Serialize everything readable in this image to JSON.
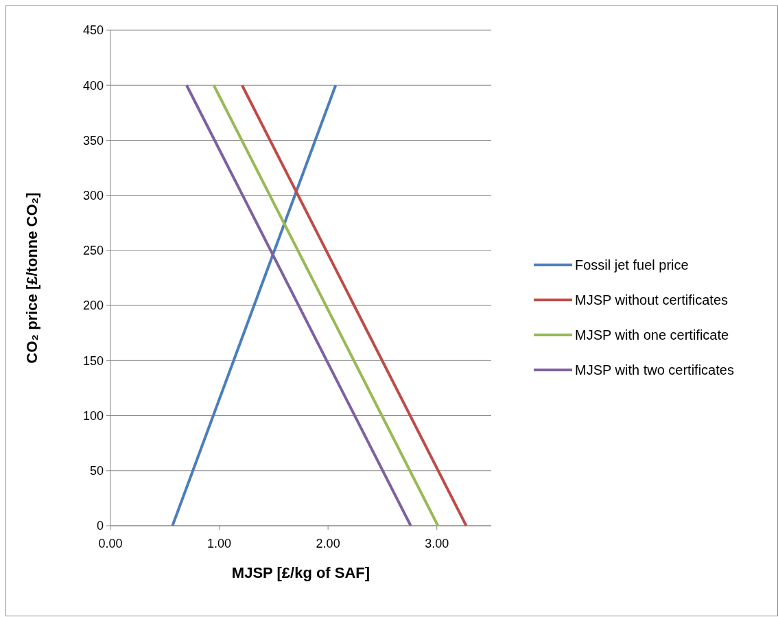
{
  "chart_data": {
    "type": "line",
    "xlabel": "MJSP [£/kg of SAF]",
    "ylabel": "CO₂ price [£/tonne CO₂]",
    "xlim": [
      0,
      3.5
    ],
    "xticks": [
      {
        "value": 0,
        "label": "0.00"
      },
      {
        "value": 1,
        "label": "1.00"
      },
      {
        "value": 2,
        "label": "2.00"
      },
      {
        "value": 3,
        "label": "3.00"
      }
    ],
    "ylim": [
      0,
      450
    ],
    "yticks": [
      0,
      50,
      100,
      150,
      200,
      250,
      300,
      350,
      400,
      450
    ],
    "grid": "y",
    "legend": "right",
    "series": [
      {
        "name": "Fossil jet fuel price",
        "color": "#4a7ebb",
        "x": [
          0.57,
          2.07
        ],
        "values": [
          0,
          400
        ]
      },
      {
        "name": "MJSP without certificates",
        "color": "#be4b48",
        "x": [
          1.21,
          3.27
        ],
        "values": [
          400,
          0
        ]
      },
      {
        "name": "MJSP with one certificate",
        "color": "#98b954",
        "x": [
          0.95,
          3.01
        ],
        "values": [
          400,
          0
        ]
      },
      {
        "name": "MJSP with two certificates",
        "color": "#7d60a0",
        "x": [
          0.7,
          2.76
        ],
        "values": [
          400,
          0
        ]
      }
    ]
  }
}
